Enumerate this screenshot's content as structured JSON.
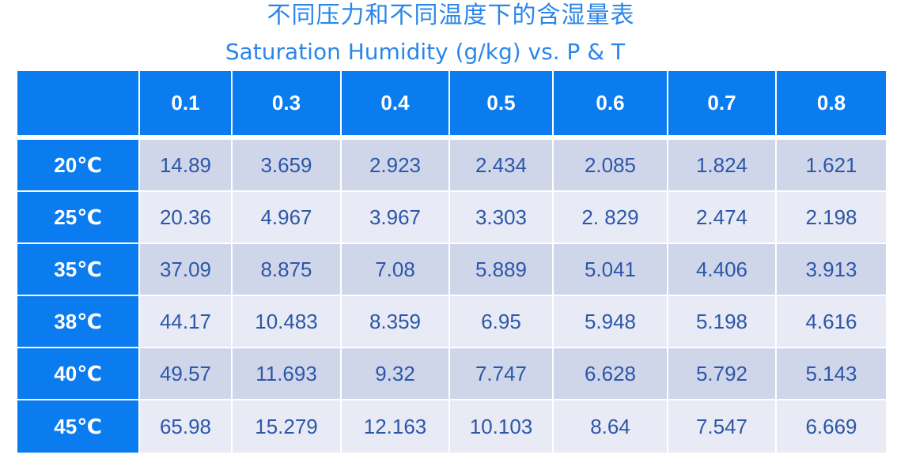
{
  "title": {
    "cn": "不同压力和不同温度下的含湿量表",
    "en": "Saturation Humidity (g/kg) vs. P & T"
  },
  "table": {
    "corner": "",
    "pressures": [
      "0.1",
      "0.3",
      "0.4",
      "0.5",
      "0.6",
      "0.7",
      "0.8"
    ],
    "rows": [
      {
        "temp": "20℃",
        "values": [
          "14.89",
          "3.659",
          "2.923",
          "2.434",
          "2.085",
          "1.824",
          "1.621"
        ]
      },
      {
        "temp": "25℃",
        "values": [
          "20.36",
          "4.967",
          "3.967",
          "3.303",
          "2. 829",
          "2.474",
          "2.198"
        ]
      },
      {
        "temp": "35℃",
        "values": [
          "37.09",
          "8.875",
          "7.08",
          "5.889",
          "5.041",
          "4.406",
          "3.913"
        ]
      },
      {
        "temp": "38℃",
        "values": [
          "44.17",
          "10.483",
          "8.359",
          "6.95",
          "5.948",
          "5.198",
          "4.616"
        ]
      },
      {
        "temp": "40℃",
        "values": [
          "49.57",
          "11.693",
          "9.32",
          "7.747",
          "6.628",
          "5.792",
          "5.143"
        ]
      },
      {
        "temp": "45℃",
        "values": [
          "65.98",
          "15.279",
          "12.163",
          "10.103",
          "8.64",
          "7.547",
          "6.669"
        ]
      }
    ]
  },
  "colors": {
    "header_blue": "#0a7cf0",
    "title_blue": "#2b86ea",
    "row_dark": "#d0d6ea",
    "row_light": "#e8eaf5",
    "value_text": "#2c57a8"
  }
}
